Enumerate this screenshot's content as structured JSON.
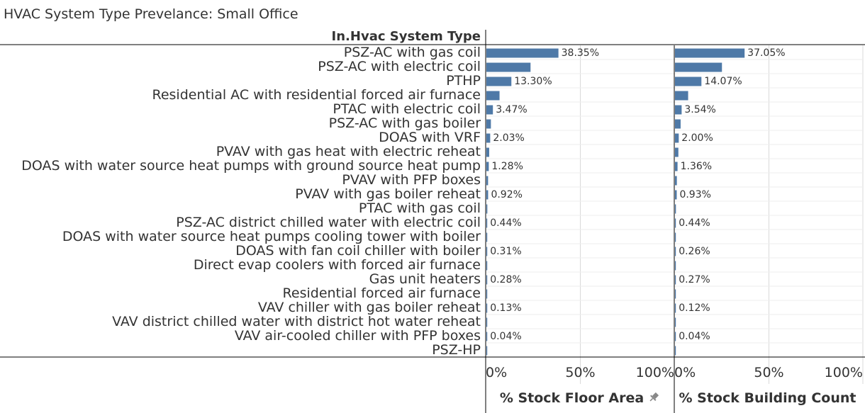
{
  "title": "HVAC System Type Prevelance: Small Office",
  "chart_data": {
    "type": "bar",
    "orientation": "horizontal",
    "row_header": "In.Hvac System Type",
    "categories": [
      "PSZ-AC with gas coil",
      "PSZ-AC with electric coil",
      "PTHP",
      "Residential AC with residential forced air furnace",
      "PTAC with electric coil",
      "PSZ-AC with gas boiler",
      "DOAS with VRF",
      "PVAV with gas heat with electric reheat",
      "DOAS with water source heat pumps with ground source heat pump",
      "PVAV with PFP boxes",
      "PVAV with gas boiler reheat",
      "PTAC with gas coil",
      "PSZ-AC district chilled water with electric coil",
      "DOAS with water source heat pumps cooling tower with boiler",
      "DOAS with fan coil chiller with boiler",
      "Direct evap coolers with forced air furnace",
      "Gas unit heaters",
      "Residential forced air furnace",
      "VAV chiller with gas boiler reheat",
      "VAV district chilled water with district hot water reheat",
      "VAV air-cooled chiller with PFP boxes",
      "PSZ-HP"
    ],
    "xlim": [
      0,
      100
    ],
    "xticks": [
      "0%",
      "50%",
      "100%"
    ],
    "grid": true,
    "series": [
      {
        "name": "% Stock Floor Area",
        "pin_icon": "pin-icon",
        "values": [
          38.35,
          23.5,
          13.3,
          7.0,
          3.47,
          2.4,
          2.03,
          1.5,
          1.28,
          0.9,
          0.92,
          0.5,
          0.44,
          0.3,
          0.31,
          0.25,
          0.28,
          0.2,
          0.13,
          0.08,
          0.04,
          0.02
        ],
        "labels": [
          "38.35%",
          "",
          "13.30%",
          "",
          "3.47%",
          "",
          "2.03%",
          "",
          "1.28%",
          "",
          "0.92%",
          "",
          "0.44%",
          "",
          "0.31%",
          "",
          "0.28%",
          "",
          "0.13%",
          "",
          "0.04%",
          ""
        ]
      },
      {
        "name": "% Stock Building Count",
        "values": [
          37.05,
          25.0,
          14.07,
          7.0,
          3.54,
          3.0,
          2.0,
          1.8,
          1.36,
          1.0,
          0.93,
          0.5,
          0.44,
          0.3,
          0.26,
          0.25,
          0.27,
          0.2,
          0.12,
          0.08,
          0.04,
          0.02
        ],
        "labels": [
          "37.05%",
          "",
          "14.07%",
          "",
          "3.54%",
          "",
          "2.00%",
          "",
          "1.36%",
          "",
          "0.93%",
          "",
          "0.44%",
          "",
          "0.26%",
          "",
          "0.27%",
          "",
          "0.12%",
          "",
          "0.04%",
          ""
        ]
      }
    ],
    "colors": {
      "bar": "#4e79a7",
      "grid": "#d9d9d9",
      "axis": "#000000",
      "rowline": "#eeeeee",
      "pin": "#888888"
    }
  }
}
